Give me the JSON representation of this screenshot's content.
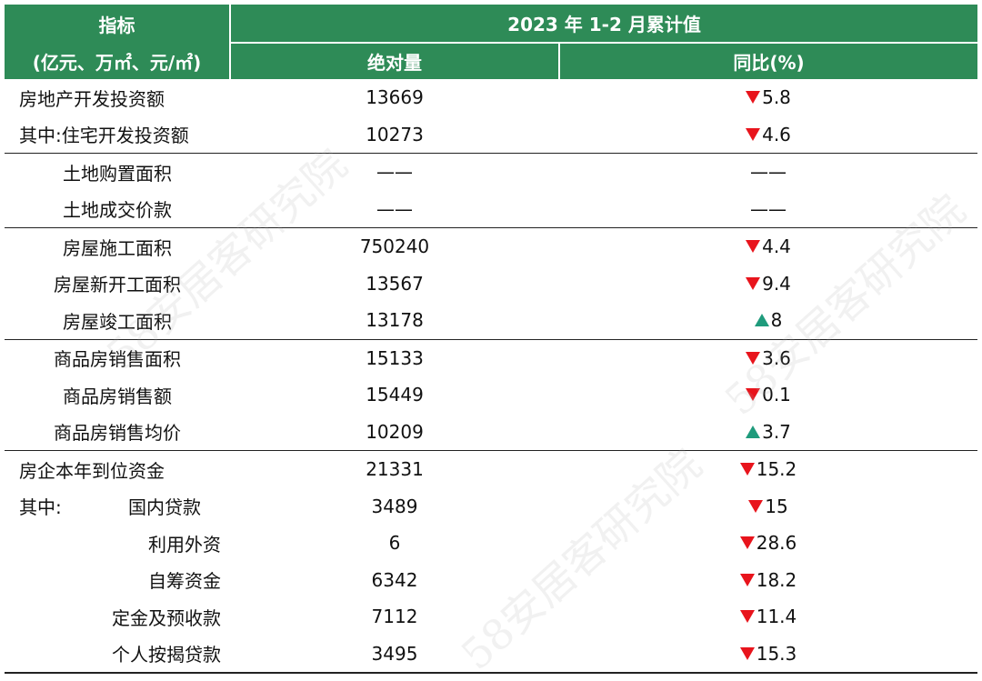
{
  "header": {
    "indicator_title": "指标",
    "indicator_unit": "(亿元、万㎡、元/㎡)",
    "period_title": "2023 年 1-2 月累计值",
    "col_value": "绝对量",
    "col_yoy": "同比(%)"
  },
  "rows": [
    {
      "label": "房地产开发投资额",
      "value": "13669",
      "yoy": "5.8",
      "trend": "down"
    },
    {
      "label": "其中:住宅开发投资额",
      "value": "10273",
      "yoy": "4.6",
      "trend": "down"
    },
    {
      "label": "土地购置面积",
      "value": "——",
      "yoy": "——",
      "trend": "none"
    },
    {
      "label": "土地成交价款",
      "value": "——",
      "yoy": "——",
      "trend": "none"
    },
    {
      "label": "房屋施工面积",
      "value": "750240",
      "yoy": "4.4",
      "trend": "down"
    },
    {
      "label": "房屋新开工面积",
      "value": "13567",
      "yoy": "9.4",
      "trend": "down"
    },
    {
      "label": "房屋竣工面积",
      "value": "13178",
      "yoy": "8",
      "trend": "up"
    },
    {
      "label": "商品房销售面积",
      "value": "15133",
      "yoy": "3.6",
      "trend": "down"
    },
    {
      "label": "商品房销售额",
      "value": "15449",
      "yoy": "0.1",
      "trend": "down"
    },
    {
      "label": "商品房销售均价",
      "value": "10209",
      "yoy": "3.7",
      "trend": "up"
    },
    {
      "label": "房企本年到位资金",
      "value": "21331",
      "yoy": "15.2",
      "trend": "down"
    },
    {
      "label_prefix": "其中:",
      "label": "国内贷款",
      "value": "3489",
      "yoy": "15",
      "trend": "down"
    },
    {
      "label": "利用外资",
      "value": "6",
      "yoy": "28.6",
      "trend": "down"
    },
    {
      "label": "自筹资金",
      "value": "6342",
      "yoy": "18.2",
      "trend": "down"
    },
    {
      "label": "定金及预收款",
      "value": "7112",
      "yoy": "11.4",
      "trend": "down"
    },
    {
      "label": "个人按揭贷款",
      "value": "3495",
      "yoy": "15.3",
      "trend": "down"
    }
  ],
  "watermark": "58安居客研究院",
  "colors": {
    "header_bg": "#2e8b57",
    "down": "#e8141c",
    "up": "#1f9b7c"
  }
}
